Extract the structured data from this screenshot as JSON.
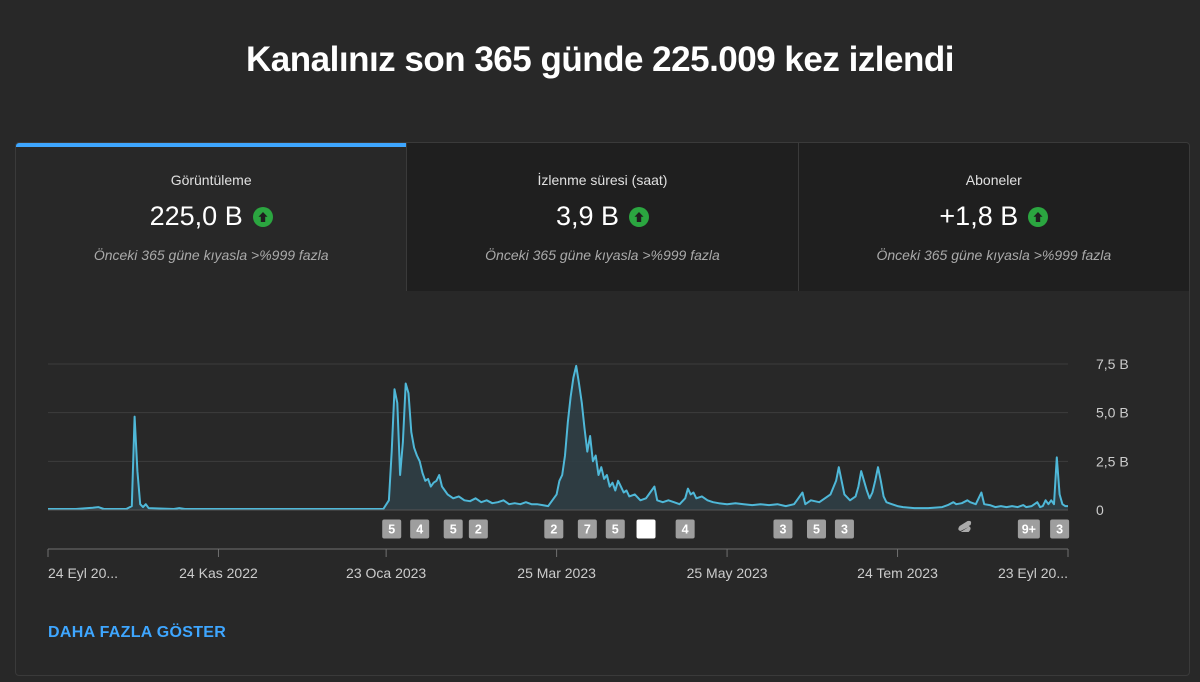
{
  "headline": "Kanalınız son 365 günde 225.009 kez izlendi",
  "tabs": [
    {
      "label": "Görüntüleme",
      "value": "225,0 B",
      "compare": "Önceki 365 güne kıyasla >%999 fazla",
      "active": true
    },
    {
      "label": "İzlenme süresi (saat)",
      "value": "3,9 B",
      "compare": "Önceki 365 güne kıyasla >%999 fazla",
      "active": false
    },
    {
      "label": "Aboneler",
      "value": "+1,8 B",
      "compare": "Önceki 365 güne kıyasla >%999 fazla",
      "active": false
    }
  ],
  "show_more": "DAHA FAZLA GÖSTER",
  "colors": {
    "accent": "#3ea6ff",
    "line": "#4fb8d8",
    "up": "#2ba640"
  },
  "chart_data": {
    "type": "area",
    "y_unit": "thousands of views per day",
    "ylim": [
      0,
      7.5
    ],
    "yticks": [
      "7,5 B",
      "5,0 B",
      "2,5 B",
      "0"
    ],
    "yticks_values": [
      7.5,
      5.0,
      2.5,
      0
    ],
    "xticks": [
      "24 Eyl 20...",
      "24 Kas 2022",
      "23 Oca 2023",
      "25 Mar 2023",
      "25 May 2023",
      "24 Tem 2023",
      "23 Eyl 20..."
    ],
    "xticks_days": [
      0,
      61,
      121,
      182,
      243,
      304,
      365
    ],
    "series": [
      {
        "values": [
          [
            0,
            0.05
          ],
          [
            10,
            0.05
          ],
          [
            16,
            0.12
          ],
          [
            18,
            0.15
          ],
          [
            20,
            0.05
          ],
          [
            28,
            0.05
          ],
          [
            30,
            0.2
          ],
          [
            31,
            4.8
          ],
          [
            32,
            2.0
          ],
          [
            33,
            0.3
          ],
          [
            34,
            0.15
          ],
          [
            35,
            0.3
          ],
          [
            36,
            0.1
          ],
          [
            45,
            0.05
          ],
          [
            47,
            0.1
          ],
          [
            49,
            0.05
          ],
          [
            60,
            0.05
          ],
          [
            80,
            0.05
          ],
          [
            100,
            0.05
          ],
          [
            115,
            0.05
          ],
          [
            120,
            0.05
          ],
          [
            122,
            0.5
          ],
          [
            123,
            3.0
          ],
          [
            124,
            6.2
          ],
          [
            125,
            5.5
          ],
          [
            126,
            1.8
          ],
          [
            127,
            3.5
          ],
          [
            128,
            6.5
          ],
          [
            129,
            6.0
          ],
          [
            130,
            4.0
          ],
          [
            131,
            3.2
          ],
          [
            132,
            2.8
          ],
          [
            133,
            2.5
          ],
          [
            134,
            1.9
          ],
          [
            135,
            1.5
          ],
          [
            136,
            1.6
          ],
          [
            137,
            1.2
          ],
          [
            138,
            1.4
          ],
          [
            139,
            1.5
          ],
          [
            140,
            1.8
          ],
          [
            141,
            1.2
          ],
          [
            142,
            1.0
          ],
          [
            143,
            0.8
          ],
          [
            145,
            0.6
          ],
          [
            147,
            0.7
          ],
          [
            149,
            0.5
          ],
          [
            151,
            0.45
          ],
          [
            153,
            0.6
          ],
          [
            155,
            0.4
          ],
          [
            157,
            0.5
          ],
          [
            159,
            0.35
          ],
          [
            161,
            0.4
          ],
          [
            163,
            0.5
          ],
          [
            165,
            0.3
          ],
          [
            167,
            0.35
          ],
          [
            169,
            0.3
          ],
          [
            171,
            0.4
          ],
          [
            173,
            0.3
          ],
          [
            175,
            0.3
          ],
          [
            177,
            0.25
          ],
          [
            179,
            0.2
          ],
          [
            182,
            0.8
          ],
          [
            183,
            1.5
          ],
          [
            184,
            1.8
          ],
          [
            185,
            2.8
          ],
          [
            186,
            4.5
          ],
          [
            187,
            5.8
          ],
          [
            188,
            6.8
          ],
          [
            189,
            7.4
          ],
          [
            190,
            6.5
          ],
          [
            191,
            5.5
          ],
          [
            192,
            4.2
          ],
          [
            193,
            3.0
          ],
          [
            194,
            3.8
          ],
          [
            195,
            2.5
          ],
          [
            196,
            2.8
          ],
          [
            197,
            1.8
          ],
          [
            198,
            2.2
          ],
          [
            199,
            1.6
          ],
          [
            200,
            1.8
          ],
          [
            201,
            1.2
          ],
          [
            202,
            1.4
          ],
          [
            203,
            1.0
          ],
          [
            204,
            1.5
          ],
          [
            205,
            1.2
          ],
          [
            206,
            0.9
          ],
          [
            207,
            1.0
          ],
          [
            208,
            0.7
          ],
          [
            210,
            0.8
          ],
          [
            212,
            0.5
          ],
          [
            214,
            0.6
          ],
          [
            216,
            1.0
          ],
          [
            217,
            1.2
          ],
          [
            218,
            0.5
          ],
          [
            220,
            0.4
          ],
          [
            222,
            0.5
          ],
          [
            224,
            0.4
          ],
          [
            226,
            0.3
          ],
          [
            228,
            0.6
          ],
          [
            229,
            1.1
          ],
          [
            230,
            0.8
          ],
          [
            231,
            0.9
          ],
          [
            232,
            0.6
          ],
          [
            234,
            0.7
          ],
          [
            236,
            0.5
          ],
          [
            238,
            0.4
          ],
          [
            240,
            0.35
          ],
          [
            243,
            0.3
          ],
          [
            246,
            0.35
          ],
          [
            249,
            0.3
          ],
          [
            252,
            0.25
          ],
          [
            255,
            0.3
          ],
          [
            258,
            0.25
          ],
          [
            261,
            0.3
          ],
          [
            264,
            0.2
          ],
          [
            267,
            0.3
          ],
          [
            270,
            0.9
          ],
          [
            271,
            0.3
          ],
          [
            273,
            0.5
          ],
          [
            276,
            0.4
          ],
          [
            278,
            0.6
          ],
          [
            280,
            0.8
          ],
          [
            282,
            1.5
          ],
          [
            283,
            2.2
          ],
          [
            284,
            1.5
          ],
          [
            285,
            0.8
          ],
          [
            287,
            0.5
          ],
          [
            289,
            0.7
          ],
          [
            290,
            1.2
          ],
          [
            291,
            2.0
          ],
          [
            292,
            1.5
          ],
          [
            293,
            1.0
          ],
          [
            294,
            0.6
          ],
          [
            295,
            0.9
          ],
          [
            296,
            1.5
          ],
          [
            297,
            2.2
          ],
          [
            298,
            1.5
          ],
          [
            299,
            0.7
          ],
          [
            300,
            0.4
          ],
          [
            302,
            0.3
          ],
          [
            304,
            0.2
          ],
          [
            306,
            0.15
          ],
          [
            310,
            0.1
          ],
          [
            315,
            0.1
          ],
          [
            320,
            0.15
          ],
          [
            322,
            0.25
          ],
          [
            324,
            0.4
          ],
          [
            325,
            0.3
          ],
          [
            327,
            0.35
          ],
          [
            329,
            0.5
          ],
          [
            330,
            0.4
          ],
          [
            332,
            0.3
          ],
          [
            333,
            0.6
          ],
          [
            334,
            0.9
          ],
          [
            335,
            0.3
          ],
          [
            337,
            0.25
          ],
          [
            339,
            0.15
          ],
          [
            341,
            0.2
          ],
          [
            343,
            0.15
          ],
          [
            345,
            0.2
          ],
          [
            347,
            0.15
          ],
          [
            349,
            0.25
          ],
          [
            350,
            0.15
          ],
          [
            352,
            0.2
          ],
          [
            354,
            0.4
          ],
          [
            355,
            0.15
          ],
          [
            356,
            0.2
          ],
          [
            357,
            0.5
          ],
          [
            358,
            0.3
          ],
          [
            359,
            0.5
          ],
          [
            360,
            0.3
          ],
          [
            361,
            2.7
          ],
          [
            362,
            0.8
          ],
          [
            363,
            0.3
          ],
          [
            364,
            0.2
          ],
          [
            365,
            0.2
          ]
        ]
      }
    ],
    "markers": [
      {
        "label": "5",
        "day": 123
      },
      {
        "label": "4",
        "day": 133
      },
      {
        "label": "5",
        "day": 145
      },
      {
        "label": "2",
        "day": 154
      },
      {
        "label": "2",
        "day": 181
      },
      {
        "label": "7",
        "day": 193
      },
      {
        "label": "5",
        "day": 203
      },
      {
        "label": "",
        "day": 214
      },
      {
        "label": "4",
        "day": 228
      },
      {
        "label": "3",
        "day": 263
      },
      {
        "label": "5",
        "day": 275
      },
      {
        "label": "3",
        "day": 285
      },
      {
        "label": "shorts",
        "day": 328
      },
      {
        "label": "9+",
        "day": 351
      },
      {
        "label": "3",
        "day": 362
      }
    ]
  }
}
